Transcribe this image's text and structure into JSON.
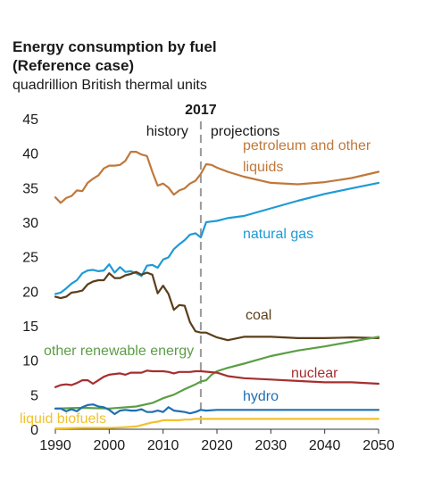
{
  "chart_data": {
    "type": "line",
    "title": "Energy consumption by fuel",
    "subtitle": "(Reference case)",
    "ylabel": "quadrillion British thermal units",
    "xlabel": "",
    "xlim": [
      1990,
      2050
    ],
    "ylim": [
      0,
      45
    ],
    "x_ticks": [
      1990,
      2000,
      2010,
      2020,
      2030,
      2040,
      2050
    ],
    "y_ticks": [
      0,
      5,
      10,
      15,
      20,
      25,
      30,
      35,
      40,
      45
    ],
    "grid": false,
    "divider": {
      "year": 2017,
      "label": "2017",
      "left_label": "history",
      "right_label": "projections"
    },
    "series": [
      {
        "name": "petroleum and other liquids",
        "color": "#c0783a",
        "points": [
          [
            1990,
            33.6
          ],
          [
            1991,
            32.8
          ],
          [
            1992,
            33.5
          ],
          [
            1993,
            33.8
          ],
          [
            1994,
            34.6
          ],
          [
            1995,
            34.5
          ],
          [
            1996,
            35.7
          ],
          [
            1997,
            36.3
          ],
          [
            1998,
            36.8
          ],
          [
            1999,
            37.8
          ],
          [
            2000,
            38.2
          ],
          [
            2001,
            38.2
          ],
          [
            2002,
            38.3
          ],
          [
            2003,
            38.9
          ],
          [
            2004,
            40.2
          ],
          [
            2005,
            40.2
          ],
          [
            2006,
            39.8
          ],
          [
            2007,
            39.6
          ],
          [
            2008,
            37.3
          ],
          [
            2009,
            35.3
          ],
          [
            2010,
            35.6
          ],
          [
            2011,
            35.0
          ],
          [
            2012,
            34.0
          ],
          [
            2013,
            34.6
          ],
          [
            2014,
            34.9
          ],
          [
            2015,
            35.6
          ],
          [
            2016,
            36.0
          ],
          [
            2017,
            37.0
          ],
          [
            2018,
            38.4
          ],
          [
            2019,
            38.3
          ],
          [
            2020,
            37.9
          ],
          [
            2022,
            37.3
          ],
          [
            2025,
            36.6
          ],
          [
            2030,
            35.7
          ],
          [
            2035,
            35.5
          ],
          [
            2040,
            35.8
          ],
          [
            2045,
            36.4
          ],
          [
            2050,
            37.3
          ]
        ]
      },
      {
        "name": "natural gas",
        "color": "#1e9ad6",
        "points": [
          [
            1990,
            19.6
          ],
          [
            1991,
            19.8
          ],
          [
            1992,
            20.4
          ],
          [
            1993,
            21.1
          ],
          [
            1994,
            21.6
          ],
          [
            1995,
            22.6
          ],
          [
            1996,
            23.0
          ],
          [
            1997,
            23.1
          ],
          [
            1998,
            22.9
          ],
          [
            1999,
            23.0
          ],
          [
            2000,
            23.9
          ],
          [
            2001,
            22.7
          ],
          [
            2002,
            23.5
          ],
          [
            2003,
            22.8
          ],
          [
            2004,
            22.9
          ],
          [
            2005,
            22.6
          ],
          [
            2006,
            22.2
          ],
          [
            2007,
            23.7
          ],
          [
            2008,
            23.8
          ],
          [
            2009,
            23.4
          ],
          [
            2010,
            24.6
          ],
          [
            2011,
            24.9
          ],
          [
            2012,
            26.1
          ],
          [
            2013,
            26.8
          ],
          [
            2014,
            27.4
          ],
          [
            2015,
            28.2
          ],
          [
            2016,
            28.4
          ],
          [
            2017,
            27.8
          ],
          [
            2018,
            30.0
          ],
          [
            2019,
            30.1
          ],
          [
            2020,
            30.2
          ],
          [
            2022,
            30.6
          ],
          [
            2025,
            30.9
          ],
          [
            2030,
            32.0
          ],
          [
            2035,
            33.1
          ],
          [
            2040,
            34.1
          ],
          [
            2045,
            34.9
          ],
          [
            2050,
            35.7
          ]
        ]
      },
      {
        "name": "coal",
        "color": "#5a3f1a",
        "points": [
          [
            1990,
            19.2
          ],
          [
            1991,
            19.0
          ],
          [
            1992,
            19.2
          ],
          [
            1993,
            19.8
          ],
          [
            1994,
            19.9
          ],
          [
            1995,
            20.1
          ],
          [
            1996,
            21.0
          ],
          [
            1997,
            21.4
          ],
          [
            1998,
            21.6
          ],
          [
            1999,
            21.6
          ],
          [
            2000,
            22.6
          ],
          [
            2001,
            21.9
          ],
          [
            2002,
            21.9
          ],
          [
            2003,
            22.3
          ],
          [
            2004,
            22.5
          ],
          [
            2005,
            22.8
          ],
          [
            2006,
            22.4
          ],
          [
            2007,
            22.7
          ],
          [
            2008,
            22.4
          ],
          [
            2009,
            19.7
          ],
          [
            2010,
            20.8
          ],
          [
            2011,
            19.6
          ],
          [
            2012,
            17.3
          ],
          [
            2013,
            18.0
          ],
          [
            2014,
            17.9
          ],
          [
            2015,
            15.5
          ],
          [
            2016,
            14.2
          ],
          [
            2017,
            14.0
          ],
          [
            2018,
            14.0
          ],
          [
            2020,
            13.3
          ],
          [
            2022,
            12.9
          ],
          [
            2025,
            13.4
          ],
          [
            2030,
            13.4
          ],
          [
            2035,
            13.2
          ],
          [
            2040,
            13.2
          ],
          [
            2045,
            13.3
          ],
          [
            2050,
            13.2
          ]
        ]
      },
      {
        "name": "other renewable energy",
        "color": "#5b9e45",
        "points": [
          [
            1990,
            3.0
          ],
          [
            1995,
            3.1
          ],
          [
            2000,
            3.0
          ],
          [
            2005,
            3.3
          ],
          [
            2008,
            3.8
          ],
          [
            2010,
            4.5
          ],
          [
            2012,
            5.0
          ],
          [
            2014,
            5.8
          ],
          [
            2016,
            6.5
          ],
          [
            2017,
            6.9
          ],
          [
            2018,
            7.1
          ],
          [
            2019,
            7.9
          ],
          [
            2020,
            8.4
          ],
          [
            2022,
            8.9
          ],
          [
            2025,
            9.5
          ],
          [
            2030,
            10.6
          ],
          [
            2035,
            11.4
          ],
          [
            2040,
            12.0
          ],
          [
            2045,
            12.7
          ],
          [
            2050,
            13.4
          ]
        ]
      },
      {
        "name": "nuclear",
        "color": "#a52f2f",
        "points": [
          [
            1990,
            6.1
          ],
          [
            1991,
            6.4
          ],
          [
            1992,
            6.5
          ],
          [
            1993,
            6.4
          ],
          [
            1994,
            6.7
          ],
          [
            1995,
            7.1
          ],
          [
            1996,
            7.1
          ],
          [
            1997,
            6.6
          ],
          [
            1998,
            7.1
          ],
          [
            1999,
            7.6
          ],
          [
            2000,
            7.9
          ],
          [
            2001,
            8.0
          ],
          [
            2002,
            8.1
          ],
          [
            2003,
            7.9
          ],
          [
            2004,
            8.2
          ],
          [
            2005,
            8.2
          ],
          [
            2006,
            8.2
          ],
          [
            2007,
            8.5
          ],
          [
            2008,
            8.4
          ],
          [
            2009,
            8.4
          ],
          [
            2010,
            8.4
          ],
          [
            2011,
            8.3
          ],
          [
            2012,
            8.1
          ],
          [
            2013,
            8.3
          ],
          [
            2014,
            8.3
          ],
          [
            2015,
            8.3
          ],
          [
            2016,
            8.4
          ],
          [
            2017,
            8.4
          ],
          [
            2020,
            8.2
          ],
          [
            2022,
            7.7
          ],
          [
            2025,
            7.4
          ],
          [
            2030,
            7.2
          ],
          [
            2035,
            7.0
          ],
          [
            2040,
            6.8
          ],
          [
            2045,
            6.8
          ],
          [
            2050,
            6.6
          ]
        ]
      },
      {
        "name": "hydro",
        "color": "#1f6fb4",
        "points": [
          [
            1990,
            3.0
          ],
          [
            1991,
            3.0
          ],
          [
            1992,
            2.6
          ],
          [
            1993,
            2.9
          ],
          [
            1994,
            2.6
          ],
          [
            1995,
            3.2
          ],
          [
            1996,
            3.5
          ],
          [
            1997,
            3.6
          ],
          [
            1998,
            3.3
          ],
          [
            1999,
            3.2
          ],
          [
            2000,
            2.8
          ],
          [
            2001,
            2.2
          ],
          [
            2002,
            2.7
          ],
          [
            2003,
            2.8
          ],
          [
            2004,
            2.7
          ],
          [
            2005,
            2.7
          ],
          [
            2006,
            2.9
          ],
          [
            2007,
            2.5
          ],
          [
            2008,
            2.5
          ],
          [
            2009,
            2.7
          ],
          [
            2010,
            2.5
          ],
          [
            2011,
            3.2
          ],
          [
            2012,
            2.7
          ],
          [
            2013,
            2.6
          ],
          [
            2014,
            2.5
          ],
          [
            2015,
            2.3
          ],
          [
            2016,
            2.5
          ],
          [
            2017,
            2.8
          ],
          [
            2018,
            2.7
          ],
          [
            2020,
            2.8
          ],
          [
            2030,
            2.8
          ],
          [
            2040,
            2.8
          ],
          [
            2050,
            2.8
          ]
        ]
      },
      {
        "name": "liquid biofuels",
        "color": "#f2c12e",
        "points": [
          [
            1990,
            0.1
          ],
          [
            1995,
            0.2
          ],
          [
            2000,
            0.2
          ],
          [
            2003,
            0.3
          ],
          [
            2005,
            0.4
          ],
          [
            2006,
            0.6
          ],
          [
            2007,
            0.8
          ],
          [
            2008,
            1.0
          ],
          [
            2009,
            1.1
          ],
          [
            2010,
            1.3
          ],
          [
            2011,
            1.3
          ],
          [
            2012,
            1.3
          ],
          [
            2013,
            1.3
          ],
          [
            2014,
            1.4
          ],
          [
            2015,
            1.4
          ],
          [
            2016,
            1.5
          ],
          [
            2017,
            1.5
          ],
          [
            2020,
            1.5
          ],
          [
            2030,
            1.5
          ],
          [
            2040,
            1.5
          ],
          [
            2050,
            1.5
          ]
        ]
      }
    ]
  }
}
